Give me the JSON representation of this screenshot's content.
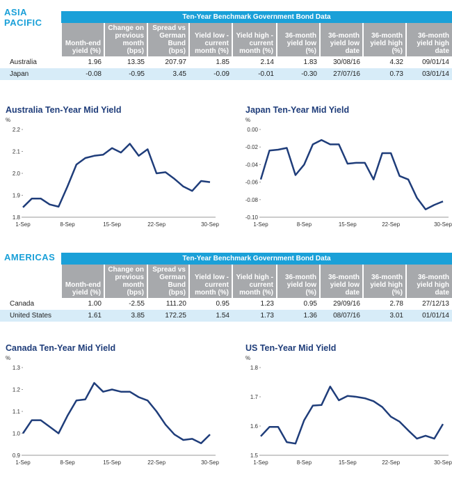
{
  "sections": [
    {
      "heading": "ASIA PACIFIC",
      "table": {
        "title": "Ten-Year Benchmark Government Bond Data",
        "columns": [
          "Month-end yield (%)",
          "Change on previous month (bps)",
          "Spread vs German Bund (bps)",
          "Yield low - current month (%)",
          "Yield high - current month (%)",
          "36-month yield low (%)",
          "36-month yield low date",
          "36-month yield high (%)",
          "36-month yield high date"
        ],
        "rows": [
          [
            "Australia",
            "1.96",
            "13.35",
            "207.97",
            "1.85",
            "2.14",
            "1.83",
            "30/08/16",
            "4.32",
            "09/01/14"
          ],
          [
            "Japan",
            "-0.08",
            "-0.95",
            "3.45",
            "-0.09",
            "-0.01",
            "-0.30",
            "27/07/16",
            "0.73",
            "03/01/14"
          ]
        ]
      }
    },
    {
      "heading": "AMERICAS",
      "table": {
        "title": "Ten-Year Benchmark Government Bond Data",
        "columns": [
          "Month-end yield (%)",
          "Change on previous month (bps)",
          "Spread vs German Bund (bps)",
          "Yield low - current month (%)",
          "Yield high - current month (%)",
          "36-month yield low (%)",
          "36-month yield low date",
          "36-month yield high (%)",
          "36-month yield high date"
        ],
        "rows": [
          [
            "Canada",
            "1.00",
            "-2.55",
            "111.20",
            "0.95",
            "1.23",
            "0.95",
            "29/09/16",
            "2.78",
            "27/12/13"
          ],
          [
            "United States",
            "1.61",
            "3.85",
            "172.25",
            "1.54",
            "1.73",
            "1.36",
            "08/07/16",
            "3.01",
            "01/01/14"
          ]
        ]
      }
    }
  ],
  "chart_data": [
    {
      "type": "line",
      "title": "Australia Ten-Year Mid Yield",
      "y_label": "%",
      "color": "#1f3d7a",
      "categories": [
        "1-Sep",
        null,
        null,
        null,
        null,
        "8-Sep",
        null,
        null,
        null,
        null,
        "15-Sep",
        null,
        null,
        null,
        null,
        "22-Sep",
        null,
        null,
        null,
        null,
        null,
        "30-Sep"
      ],
      "values": [
        1.845,
        1.885,
        1.885,
        1.858,
        1.848,
        1.94,
        2.04,
        2.07,
        2.08,
        2.085,
        2.115,
        2.095,
        2.135,
        2.08,
        2.11,
        2.0,
        2.005,
        1.975,
        1.94,
        1.92,
        1.965,
        1.96
      ],
      "ylim": [
        1.8,
        2.2
      ],
      "yticks": [
        1.8,
        1.9,
        {
          "value": 2,
          "label": "2.0"
        },
        2.1,
        2.2
      ]
    },
    {
      "type": "line",
      "title": "Japan Ten-Year Mid Yield",
      "y_label": "%",
      "color": "#1f3d7a",
      "categories": [
        "1-Sep",
        null,
        null,
        null,
        null,
        "8-Sep",
        null,
        null,
        null,
        null,
        "15-Sep",
        null,
        null,
        null,
        null,
        "22-Sep",
        null,
        null,
        null,
        null,
        null,
        "30-Sep"
      ],
      "values": [
        -0.057,
        -0.024,
        -0.023,
        -0.021,
        -0.052,
        -0.04,
        -0.017,
        -0.012,
        -0.017,
        -0.017,
        -0.039,
        -0.038,
        -0.038,
        -0.057,
        -0.027,
        -0.027,
        -0.053,
        -0.057,
        -0.078,
        -0.091,
        -0.086,
        -0.082
      ],
      "ylim": [
        -0.1,
        0
      ],
      "yticks": [
        {
          "value": -0.1,
          "label": "-0.10"
        },
        -0.08,
        -0.06,
        -0.04,
        -0.02,
        {
          "value": 0,
          "label": "0.00"
        }
      ]
    },
    {
      "type": "line",
      "title": "Canada Ten-Year Mid Yield",
      "y_label": "%",
      "color": "#1f3d7a",
      "categories": [
        "1-Sep",
        null,
        null,
        null,
        null,
        "8-Sep",
        null,
        null,
        null,
        null,
        "15-Sep",
        null,
        null,
        null,
        null,
        "22-Sep",
        null,
        null,
        null,
        null,
        null,
        "30-Sep"
      ],
      "values": [
        1.0,
        1.06,
        1.06,
        1.03,
        1.0,
        1.08,
        1.15,
        1.155,
        1.23,
        1.19,
        1.2,
        1.19,
        1.19,
        1.165,
        1.15,
        1.1,
        1.04,
        0.995,
        0.97,
        0.975,
        0.955,
        0.995
      ],
      "ylim": [
        0.9,
        1.3
      ],
      "yticks": [
        0.9,
        {
          "value": 1,
          "label": "1.0"
        },
        1.1,
        1.2,
        1.3
      ]
    },
    {
      "type": "line",
      "title": "US Ten-Year Mid Yield",
      "y_label": "%",
      "color": "#1f3d7a",
      "categories": [
        "1-Sep",
        null,
        null,
        null,
        null,
        "8-Sep",
        null,
        null,
        null,
        null,
        "15-Sep",
        null,
        null,
        null,
        null,
        "22-Sep",
        null,
        null,
        null,
        null,
        null,
        "30-Sep"
      ],
      "values": [
        1.565,
        1.597,
        1.597,
        1.545,
        1.54,
        1.62,
        1.67,
        1.672,
        1.735,
        1.688,
        1.703,
        1.7,
        1.695,
        1.685,
        1.665,
        1.632,
        1.615,
        1.585,
        1.557,
        1.567,
        1.557,
        1.607
      ],
      "ylim": [
        1.5,
        1.8
      ],
      "yticks": [
        1.5,
        1.6,
        1.7,
        1.8
      ]
    }
  ]
}
